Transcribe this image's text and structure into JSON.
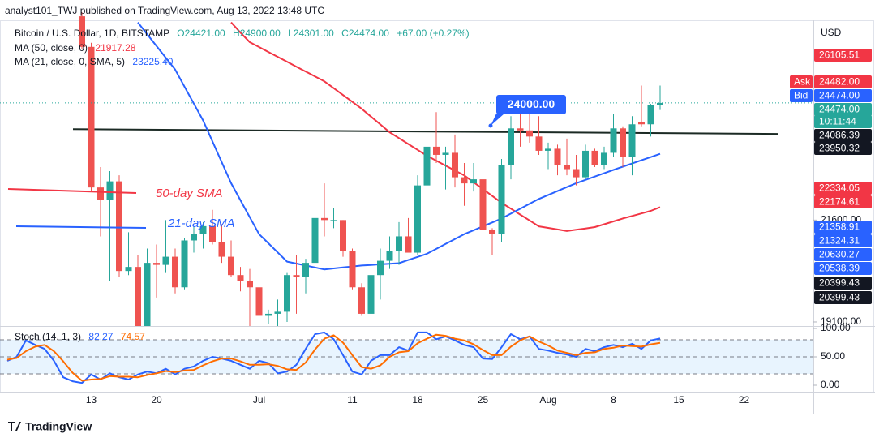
{
  "chart_data": {
    "type": "candlestick",
    "title": "analyst101_TWJ published on TradingView.com, Aug 13, 2022 13:48 UTC",
    "symbol": "Bitcoin / U.S. Dollar, 1D, BITSTAMP",
    "quote": [
      "O24421.00",
      "H24900.00",
      "L24301.00",
      "C24474.00",
      "+67.00 (+0.27%)"
    ],
    "currency": "USD",
    "footer": "TradingView",
    "up_color": "#26a69a",
    "down_color": "#ef5350",
    "ylim": [
      19000,
      27000
    ],
    "yticks": [
      {
        "value": 21600,
        "label": "21600.00"
      },
      {
        "value": 19100,
        "label": "19100.00"
      }
    ],
    "categories": [
      null,
      null,
      null,
      null,
      null,
      null,
      null,
      null,
      null,
      "13",
      null,
      null,
      null,
      null,
      null,
      null,
      "20",
      null,
      null,
      null,
      null,
      null,
      null,
      null,
      null,
      null,
      null,
      "Jul",
      null,
      null,
      null,
      null,
      null,
      null,
      null,
      null,
      null,
      "11",
      null,
      null,
      null,
      null,
      null,
      null,
      "18",
      null,
      null,
      null,
      null,
      null,
      null,
      "25",
      null,
      null,
      null,
      null,
      null,
      null,
      "Aug",
      null,
      null,
      null,
      null,
      null,
      null,
      "8",
      null,
      null,
      null,
      null,
      null,
      null,
      "15",
      null,
      null,
      null,
      null,
      null,
      null,
      "22",
      null,
      null,
      null,
      null,
      null,
      null
    ],
    "candles": [
      null,
      null,
      null,
      null,
      null,
      null,
      null,
      null,
      [
        26600,
        26700,
        25800,
        25850
      ],
      [
        25850,
        25950,
        22300,
        22400
      ],
      [
        22400,
        22900,
        21200,
        22100
      ],
      [
        22100,
        22800,
        20100,
        22550
      ],
      [
        22550,
        22700,
        20200,
        20350
      ],
      [
        20350,
        21300,
        20250,
        20450
      ],
      [
        20450,
        20750,
        17600,
        19000
      ],
      [
        19000,
        20900,
        17900,
        20550
      ],
      [
        20550,
        21000,
        19700,
        20500
      ],
      [
        20500,
        21600,
        20300,
        20700
      ],
      [
        20700,
        20900,
        19800,
        19950
      ],
      [
        19950,
        21150,
        19900,
        21100
      ],
      [
        21100,
        21450,
        20800,
        21250
      ],
      [
        21250,
        21550,
        20900,
        21450
      ],
      [
        21450,
        21850,
        21000,
        21050
      ],
      [
        21050,
        21500,
        20550,
        20700
      ],
      [
        20700,
        21100,
        20200,
        20250
      ],
      [
        20250,
        20450,
        19850,
        20100
      ],
      [
        20100,
        20400,
        18700,
        19950
      ],
      [
        19950,
        20800,
        19000,
        19250
      ],
      [
        19250,
        19400,
        19050,
        19300
      ],
      [
        19300,
        19650,
        19000,
        19350
      ],
      [
        19350,
        20300,
        19100,
        20250
      ],
      [
        20250,
        20750,
        19300,
        20200
      ],
      [
        20200,
        20650,
        19800,
        20550
      ],
      [
        20550,
        21850,
        20450,
        21650
      ],
      [
        21650,
        22500,
        21200,
        21600
      ],
      [
        21600,
        21900,
        21400,
        21600
      ],
      [
        21600,
        21600,
        20700,
        20850
      ],
      [
        20850,
        20900,
        19900,
        19950
      ],
      [
        19950,
        20050,
        19250,
        19300
      ],
      [
        19300,
        20200,
        18950,
        20250
      ],
      [
        20250,
        20900,
        19650,
        20600
      ],
      [
        20600,
        21200,
        20400,
        20850
      ],
      [
        20850,
        21550,
        20500,
        21200
      ],
      [
        21200,
        21650,
        20800,
        20800
      ],
      [
        20800,
        22700,
        20750,
        22450
      ],
      [
        22450,
        23700,
        21600,
        23400
      ],
      [
        23400,
        24250,
        23000,
        23200
      ],
      [
        23200,
        23400,
        22350,
        23250
      ],
      [
        23250,
        23700,
        22400,
        22650
      ],
      [
        22650,
        23000,
        21950,
        22500
      ],
      [
        22500,
        23000,
        22300,
        22600
      ],
      [
        22600,
        22700,
        21300,
        21350
      ],
      [
        21350,
        21400,
        20750,
        21250
      ],
      [
        21250,
        23100,
        21050,
        22950
      ],
      [
        22950,
        24150,
        22600,
        23850
      ],
      [
        23850,
        24400,
        23400,
        23800
      ],
      [
        23800,
        24650,
        23500,
        23650
      ],
      [
        23650,
        24150,
        23200,
        23300
      ],
      [
        23300,
        23500,
        22850,
        23350
      ],
      [
        23350,
        23450,
        22700,
        22950
      ],
      [
        22950,
        23600,
        22700,
        22850
      ],
      [
        22850,
        23200,
        22450,
        22650
      ],
      [
        22650,
        23450,
        22600,
        23300
      ],
      [
        23300,
        23350,
        22900,
        22950
      ],
      [
        22950,
        23400,
        22850,
        23250
      ],
      [
        23250,
        24200,
        23150,
        23850
      ],
      [
        23850,
        23900,
        22900,
        23150
      ],
      [
        23150,
        24150,
        22700,
        23950
      ],
      [
        24000,
        24900,
        23900,
        23950
      ],
      [
        23950,
        24450,
        23650,
        24421
      ],
      [
        24421,
        24900,
        24301,
        24474
      ],
      null,
      null,
      null,
      null,
      null,
      null,
      null,
      null,
      null,
      null,
      null,
      null,
      null,
      null,
      null
    ],
    "series": [
      {
        "name": "MA (50, close, 0)",
        "legend_value": "21917.28",
        "color": "#f23645",
        "values": [
          null,
          null,
          null,
          null,
          null,
          null,
          null,
          null,
          null,
          null,
          null,
          null,
          null,
          null,
          null,
          null,
          null,
          null,
          null,
          null,
          null,
          null,
          null,
          null,
          26450,
          26200,
          25965,
          25845,
          25725,
          25605,
          25485,
          25365,
          25245,
          25125,
          25004,
          24836,
          24668,
          24500,
          24331,
          24139,
          23947,
          23754,
          23610,
          23466,
          23322,
          23177,
          23057,
          22937,
          22817,
          22696,
          22528,
          22360,
          22192,
          22023,
          21879,
          21735,
          21591,
          21446,
          21408,
          21370,
          21331,
          21363,
          21395,
          21427,
          21497,
          21567,
          21638,
          21700,
          21763,
          21825,
          21917.28,
          null,
          null,
          null,
          null,
          null,
          null,
          null,
          null,
          null,
          null,
          null,
          null,
          null,
          null,
          null
        ]
      },
      {
        "name": "MA (21, close, 0, SMA, 5)",
        "legend_value": "23225.40",
        "color": "#2962ff",
        "values": [
          null,
          null,
          null,
          null,
          null,
          null,
          null,
          null,
          null,
          null,
          null,
          null,
          null,
          null,
          26450,
          26158,
          25870,
          25581,
          25292,
          24875,
          24459,
          24042,
          23529,
          23017,
          22504,
          22087,
          21671,
          21254,
          21030,
          20805,
          20581,
          20533,
          20485,
          20436,
          20388,
          20412,
          20436,
          20461,
          20485,
          20499,
          20514,
          20528,
          20542,
          20619,
          20696,
          20773,
          20893,
          21013,
          21134,
          21254,
          21350,
          21446,
          21542,
          21638,
          21758,
          21878,
          21999,
          22119,
          22215,
          22312,
          22408,
          22504,
          22586,
          22668,
          22749,
          22831,
          22910,
          22989,
          23068,
          23146,
          23225.4,
          null,
          null,
          null,
          null,
          null,
          null,
          null,
          null,
          null,
          null,
          null,
          null,
          null,
          null,
          null
        ]
      }
    ],
    "trend_line": {
      "values": [
        23830,
        23715
      ],
      "color": "#1b2a24"
    },
    "annotations": [
      "50-day SMA",
      "21-day SMA",
      "24000.00"
    ],
    "price_tags": [
      {
        "label": "26105.51",
        "color": "#f23645"
      },
      {
        "prefix": "Ask",
        "label": "24482.00",
        "color": "#f23645"
      },
      {
        "prefix": "Bid",
        "label": "24474.00",
        "color": "#2962ff"
      },
      {
        "label": "24474.00",
        "color": "#26a69a"
      },
      {
        "label": "10:11:44",
        "color": "#26a69a"
      },
      {
        "label": "24086.39",
        "color": "#131722"
      },
      {
        "label": "23950.32",
        "color": "#131722"
      },
      {
        "label": "22334.05",
        "color": "#f23645"
      },
      {
        "label": "22174.61",
        "color": "#f23645"
      },
      {
        "label": "21358.91",
        "color": "#2962ff"
      },
      {
        "label": "21324.31",
        "color": "#2962ff"
      },
      {
        "label": "20630.27",
        "color": "#2962ff"
      },
      {
        "label": "20538.39",
        "color": "#2962ff"
      },
      {
        "label": "20399.43",
        "color": "#131722"
      },
      {
        "label": "20399.43",
        "color": "#131722"
      }
    ],
    "stoch": {
      "title": "Stoch (14, 1, 3)",
      "ylim": [
        0,
        100
      ],
      "yticks": [
        {
          "value": 100,
          "label": "100.00"
        },
        {
          "value": 50,
          "label": "50.00"
        },
        {
          "value": 0,
          "label": "0.00"
        }
      ],
      "levels": [
        20,
        50,
        80
      ],
      "series": [
        {
          "color": "#2962ff",
          "values": [
            43,
            50,
            79,
            71,
            64,
            43,
            14,
            7,
            4,
            19,
            10,
            21,
            14,
            10,
            19,
            24,
            21,
            29,
            19,
            29,
            33,
            43,
            50,
            47,
            43,
            36,
            29,
            43,
            39,
            21,
            24,
            36,
            64,
            90,
            93,
            81,
            53,
            24,
            19,
            43,
            53,
            53,
            67,
            61,
            93,
            93,
            81,
            86,
            79,
            71,
            67,
            47,
            46,
            67,
            90,
            81,
            86,
            64,
            61,
            57,
            54,
            50,
            64,
            60,
            67,
            71,
            67,
            73,
            64,
            79,
            82.27,
            null,
            null,
            null,
            null,
            null,
            null,
            null,
            null,
            null,
            null,
            null,
            null,
            null,
            null,
            null
          ]
        },
        {
          "color": "#ff6d00",
          "values": [
            45,
            48,
            60,
            68,
            71,
            60,
            42,
            22,
            8,
            10,
            11,
            16,
            15,
            15,
            14,
            18,
            21,
            25,
            23,
            26,
            27,
            35,
            42,
            47,
            47,
            42,
            36,
            36,
            37,
            34,
            28,
            27,
            40,
            63,
            82,
            88,
            75,
            53,
            32,
            29,
            35,
            50,
            58,
            60,
            74,
            82,
            89,
            87,
            82,
            79,
            72,
            62,
            53,
            53,
            68,
            79,
            86,
            77,
            70,
            61,
            57,
            53,
            57,
            58,
            64,
            66,
            70,
            69,
            68,
            72,
            74.57,
            null,
            null,
            null,
            null,
            null,
            null,
            null,
            null,
            null,
            null,
            null,
            null,
            null,
            null,
            null
          ]
        }
      ]
    }
  }
}
